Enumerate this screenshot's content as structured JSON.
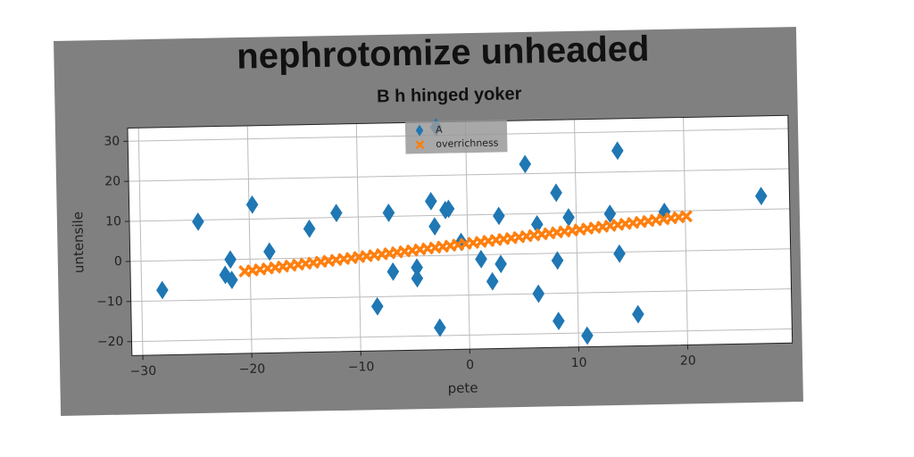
{
  "chart_data": {
    "type": "scatter",
    "title": "nephrotomize unheaded",
    "subtitle": "B h hinged yoker",
    "x_label": "pete",
    "y_label": "untensile",
    "xlim": [
      -31,
      29.6
    ],
    "ylim": [
      -23.5,
      33.3
    ],
    "xticks": [
      {
        "value": -30,
        "label": "−30"
      },
      {
        "value": -20,
        "label": "−20"
      },
      {
        "value": -10,
        "label": "−10"
      },
      0,
      10,
      20
    ],
    "yticks": [
      {
        "value": -20,
        "label": "−20"
      },
      {
        "value": -10,
        "label": "−10"
      },
      0,
      10,
      20,
      30
    ],
    "grid": true,
    "legend": "upper center",
    "series": [
      {
        "name": "A",
        "color": "#1f77b4",
        "marker": "diamond",
        "x": [
          -28.1,
          -24.7,
          -19.7,
          -21.8,
          -22.3,
          -21.7,
          -18.2,
          -14.5,
          -12,
          -7.2,
          -6.9,
          -8.4,
          -4.7,
          -4.7,
          -3.3,
          -3,
          -2,
          -1.7,
          -2.7,
          -2.7,
          -0.6,
          1.2,
          2.2,
          2.9,
          3,
          5.4,
          6.4,
          6.4,
          8.2,
          8.2,
          8.2,
          9.3,
          10.8,
          13.1,
          13.9,
          13.9,
          15.5,
          18.1,
          27
        ],
        "values": [
          -7.3,
          9.6,
          13.6,
          0,
          -3.8,
          -5.1,
          1.8,
          7.3,
          11.1,
          10.9,
          -3.8,
          -12.4,
          -2.9,
          -5.6,
          13.6,
          7.3,
          11.3,
          11.6,
          -18,
          32,
          3.3,
          -1.1,
          -6.7,
          9.6,
          -2.4,
          22.4,
          7.3,
          -10,
          15.1,
          -1.8,
          -16.9,
          8.9,
          -20.7,
          9.6,
          25.3,
          -0.4,
          -15.6,
          9.8,
          13.3
        ]
      },
      {
        "name": "overrichness",
        "color": "#ff7f0e",
        "marker": "x",
        "x": [
          -20.5,
          -19.8,
          -19.1,
          -18.4,
          -17.7,
          -17.0,
          -16.3,
          -15.6,
          -14.9,
          -14.2,
          -13.5,
          -12.8,
          -12.1,
          -11.4,
          -10.7,
          -10.0,
          -9.3,
          -8.6,
          -7.9,
          -7.2,
          -6.5,
          -5.8,
          -5.1,
          -4.4,
          -3.7,
          -3.0,
          -2.3,
          -1.6,
          -0.9,
          -0.2,
          0.5,
          1.2,
          1.9,
          2.6,
          3.3,
          4.0,
          4.7,
          5.4,
          6.1,
          6.8,
          7.5,
          8.2,
          8.9,
          9.6,
          10.3,
          11.0,
          11.7,
          12.4,
          13.1,
          13.8,
          14.5,
          15.2,
          15.9,
          16.6,
          17.3,
          18.0,
          18.7,
          19.4,
          20.1
        ],
        "values": [
          -3.0,
          -2.8,
          -2.6,
          -2.4,
          -2.2,
          -2.0,
          -1.8,
          -1.6,
          -1.4,
          -1.2,
          -1.0,
          -0.8,
          -0.6,
          -0.4,
          -0.2,
          0.0,
          0.2,
          0.4,
          0.6,
          0.8,
          1.0,
          1.2,
          1.4,
          1.6,
          1.8,
          2.0,
          2.2,
          2.4,
          2.6,
          2.8,
          3.0,
          3.2,
          3.4,
          3.6,
          3.8,
          4.0,
          4.2,
          4.4,
          4.6,
          4.8,
          5.0,
          5.2,
          5.4,
          5.6,
          5.8,
          6.0,
          6.2,
          6.4,
          6.6,
          6.8,
          7.0,
          7.2,
          7.4,
          7.6,
          7.8,
          8.0,
          8.2,
          8.4,
          8.6
        ]
      }
    ]
  }
}
